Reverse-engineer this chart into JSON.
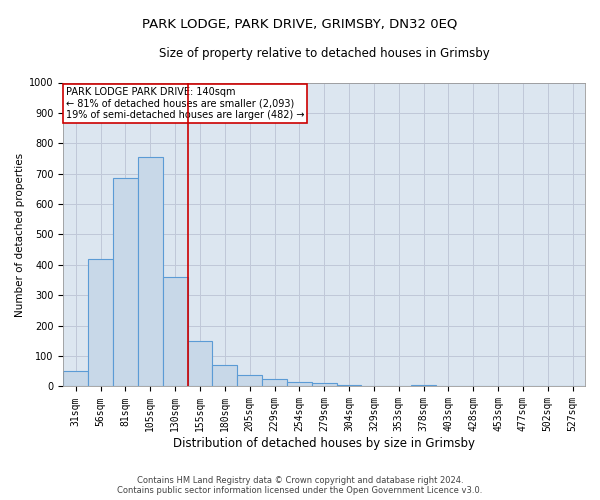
{
  "title": "PARK LODGE, PARK DRIVE, GRIMSBY, DN32 0EQ",
  "subtitle": "Size of property relative to detached houses in Grimsby",
  "xlabel": "Distribution of detached houses by size in Grimsby",
  "ylabel": "Number of detached properties",
  "footer_line1": "Contains HM Land Registry data © Crown copyright and database right 2024.",
  "footer_line2": "Contains public sector information licensed under the Open Government Licence v3.0.",
  "categories": [
    "31sqm",
    "56sqm",
    "81sqm",
    "105sqm",
    "130sqm",
    "155sqm",
    "180sqm",
    "205sqm",
    "229sqm",
    "254sqm",
    "279sqm",
    "304sqm",
    "329sqm",
    "353sqm",
    "378sqm",
    "403sqm",
    "428sqm",
    "453sqm",
    "477sqm",
    "502sqm",
    "527sqm"
  ],
  "bar_values": [
    50,
    420,
    685,
    755,
    360,
    150,
    70,
    37,
    25,
    15,
    10,
    5,
    0,
    0,
    5,
    0,
    0,
    0,
    0,
    0,
    0
  ],
  "bar_color": "#c8d8e8",
  "bar_edge_color": "#5b9bd5",
  "bar_edge_width": 0.8,
  "red_line_x": 4.5,
  "red_line_color": "#cc0000",
  "ylim": [
    0,
    1000
  ],
  "yticks": [
    0,
    100,
    200,
    300,
    400,
    500,
    600,
    700,
    800,
    900,
    1000
  ],
  "annotation_title": "PARK LODGE PARK DRIVE: 140sqm",
  "annotation_line1": "← 81% of detached houses are smaller (2,093)",
  "annotation_line2": "19% of semi-detached houses are larger (482) →",
  "annotation_box_color": "#ffffff",
  "annotation_box_edge": "#cc0000",
  "grid_color": "#c0c8d8",
  "bg_color": "#dce6f0",
  "title_fontsize": 9.5,
  "subtitle_fontsize": 8.5,
  "footer_fontsize": 6.0,
  "ylabel_fontsize": 7.5,
  "xlabel_fontsize": 8.5,
  "tick_fontsize": 7,
  "annot_fontsize": 7
}
